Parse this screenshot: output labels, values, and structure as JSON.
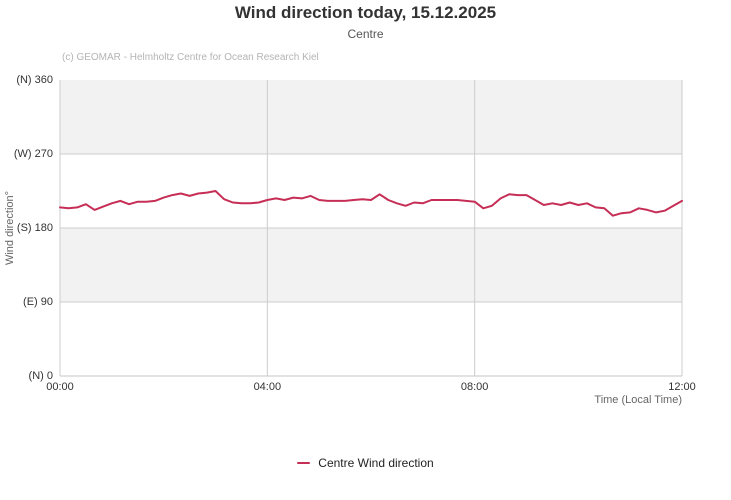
{
  "header": {
    "title": "Wind direction today, 15.12.2025",
    "subtitle": "Centre",
    "credit": "(c) GEOMAR - Helmholtz Centre for Ocean Research Kiel"
  },
  "axes": {
    "y_title": "Wind direction°",
    "x_title": "Time (Local Time)"
  },
  "legend": {
    "items": [
      {
        "label": "Centre Wind direction",
        "color": "#c62e56"
      }
    ]
  },
  "colors": {
    "series": "#c62e56",
    "band": "#f2f2f2",
    "grid": "#cccccc",
    "axis_line": "#c6c6c6",
    "title": "#333333",
    "subtitle": "#555555",
    "credit": "#b4b4b4"
  },
  "chart_data": {
    "type": "line",
    "title": "Wind direction today, 15.12.2025",
    "subtitle": "Centre",
    "credit": "(c) GEOMAR - Helmholtz Centre for Ocean Research Kiel",
    "xlabel": "Time (Local Time)",
    "ylabel": "Wind direction°",
    "ylim": [
      0,
      360
    ],
    "xlim_minutes": [
      0,
      720
    ],
    "grid": true,
    "alternating_bands": [
      [
        90,
        180
      ],
      [
        270,
        360
      ]
    ],
    "legend_position": "bottom",
    "y_ticks": [
      {
        "label": "(N) 0",
        "value": 0
      },
      {
        "label": "(E) 90",
        "value": 90
      },
      {
        "label": "(S) 180",
        "value": 180
      },
      {
        "label": "(W) 270",
        "value": 270
      },
      {
        "label": "(N) 360",
        "value": 360
      }
    ],
    "x_ticks": [
      {
        "label": "00:00",
        "minutes": 0
      },
      {
        "label": "04:00",
        "minutes": 240
      },
      {
        "label": "08:00",
        "minutes": 480
      },
      {
        "label": "12:00",
        "minutes": 720
      }
    ],
    "series": [
      {
        "name": "Centre Wind direction",
        "color": "#c62e56",
        "unit": "degrees",
        "start_minutes": 0,
        "interval_minutes": 10,
        "values": [
          205,
          204,
          205,
          209,
          202,
          206,
          210,
          213,
          209,
          212,
          212,
          213,
          217,
          220,
          222,
          219,
          222,
          223,
          225,
          215,
          211,
          210,
          210,
          211,
          214,
          216,
          214,
          217,
          216,
          219,
          214,
          213,
          213,
          213,
          214,
          215,
          214,
          221,
          214,
          210,
          207,
          211,
          210,
          214,
          214,
          214,
          214,
          213,
          212,
          204,
          207,
          216,
          221,
          220,
          220,
          214,
          208,
          210,
          208,
          211,
          208,
          210,
          205,
          204,
          195,
          198,
          199,
          204,
          202,
          199,
          201,
          207,
          213
        ]
      }
    ]
  }
}
